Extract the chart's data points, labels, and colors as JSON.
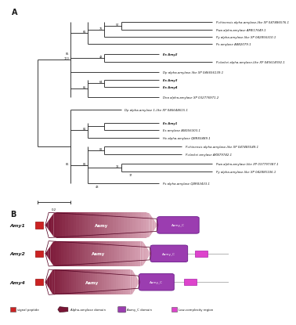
{
  "background": "#ffffff",
  "tree_lw": 0.6,
  "leaf_fs": 2.8,
  "boot_fs": 2.5,
  "panel_a_label": "A",
  "panel_b_label": "B",
  "leaves": [
    {
      "id": 0,
      "label": "P.chinensis alpha-amylase-like XP 047486576.1",
      "bold": false
    },
    {
      "id": 1,
      "label": "Pwa alpha-amylase AME17649.1",
      "bold": false
    },
    {
      "id": 2,
      "label": "Py alpha-amylase-like XP 042856310.1",
      "bold": false
    },
    {
      "id": 3,
      "label": "Ps amylase A8B2079.1",
      "bold": false
    },
    {
      "id": 4,
      "label": "Es Amy2",
      "bold": true
    },
    {
      "id": 5,
      "label": "P.clarkei alpha-amylase-like XP 045614592.1",
      "bold": false
    },
    {
      "id": 6,
      "label": "Dp alpha-amylase-like XP 046656139.1",
      "bold": false
    },
    {
      "id": 7,
      "label": "Es Amy3",
      "bold": true
    },
    {
      "id": 8,
      "label": "Es Amy4",
      "bold": true
    },
    {
      "id": 9,
      "label": "Dna alpha-amylase XP 032776971.2",
      "bold": false
    },
    {
      "id": 10,
      "label": "Dp alpha-amylase 1-like XP 046644615.1",
      "bold": false
    },
    {
      "id": 11,
      "label": "Es Amy1",
      "bold": true
    },
    {
      "id": 12,
      "label": "Es amylase ANG56303.1",
      "bold": false
    },
    {
      "id": 13,
      "label": "Hv alpha-amylase QBR83489.1",
      "bold": false
    },
    {
      "id": 14,
      "label": "P.chinensis alpha-amylase-like XP 047485549.1",
      "bold": false
    },
    {
      "id": 15,
      "label": "P.clarkei amylase AKN79742.1",
      "bold": false
    },
    {
      "id": 16,
      "label": "Pwa alpha-amylase-like XP 037797387.1",
      "bold": false
    },
    {
      "id": 17,
      "label": "Py alpha-amylase-like XP 042885106.1",
      "bold": false
    },
    {
      "id": 18,
      "label": "Ps alpha-amylase QBR83433.1",
      "bold": false
    }
  ],
  "signal_color": "#cc2222",
  "aamy_dark": "#7a1535",
  "aamy_mid": "#b06080",
  "aamy_light": "#e0b0c0",
  "amyc_color": "#9b3db0",
  "amyc_edge": "#6a1a8a",
  "lcr_color": "#dd44cc",
  "tail_color": "#bbbbbb",
  "outline_color": "#5a0a2a"
}
